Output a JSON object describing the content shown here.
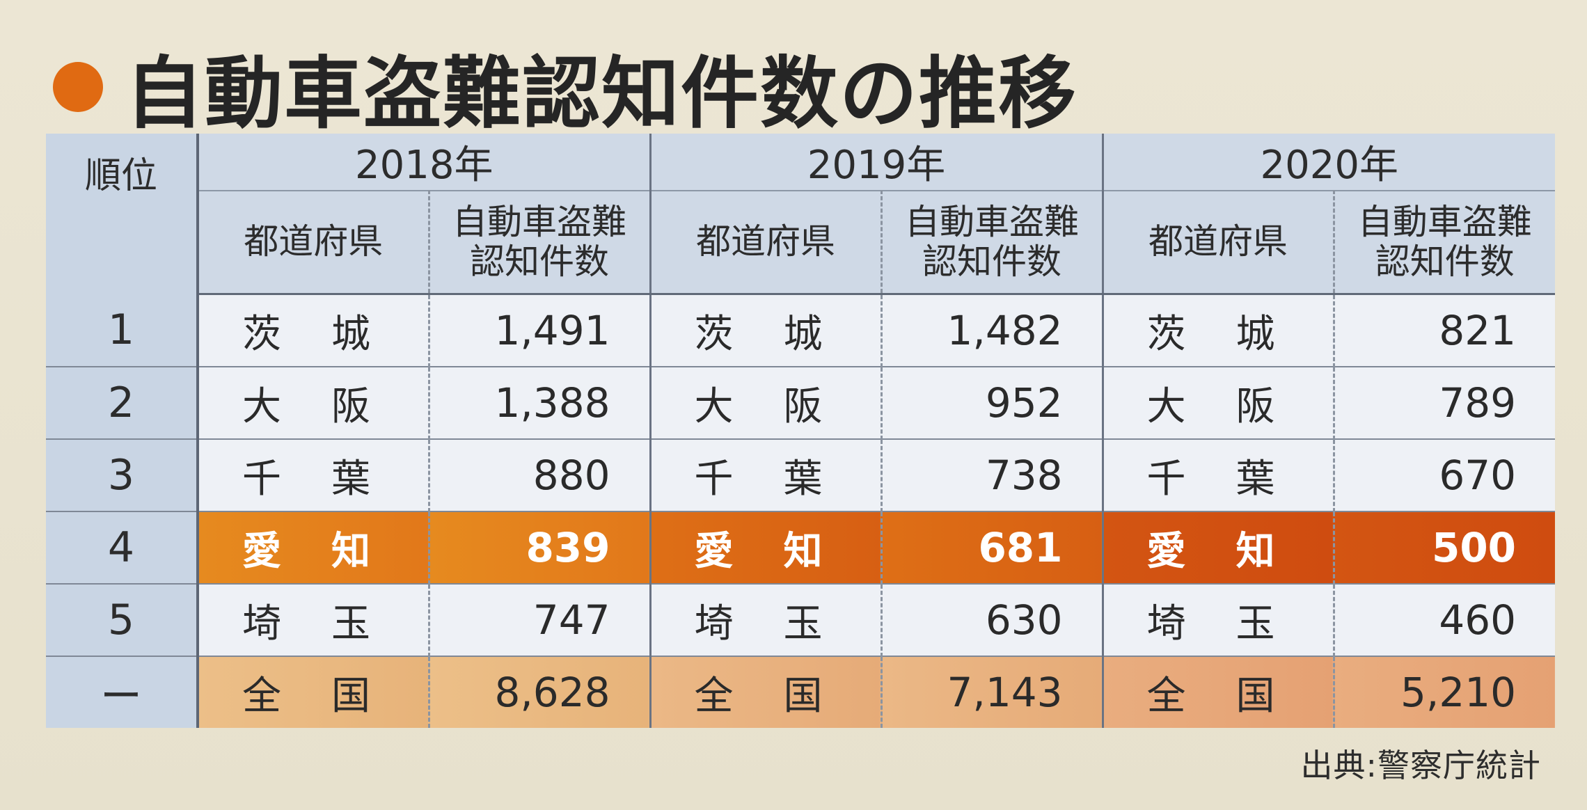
{
  "title": "自動車盗難認知件数の推移",
  "table": {
    "rank_header": "順位",
    "years": [
      "2018年",
      "2019年",
      "2020年"
    ],
    "sub_headers": {
      "prefecture": "都道府県",
      "count_line1": "自動車盗難",
      "count_line2": "認知件数"
    },
    "rows": [
      {
        "rank": "1",
        "cells": [
          {
            "pref": [
              "茨",
              "城"
            ],
            "count": "1,491"
          },
          {
            "pref": [
              "茨",
              "城"
            ],
            "count": "1,482"
          },
          {
            "pref": [
              "茨",
              "城"
            ],
            "count": "821"
          }
        ]
      },
      {
        "rank": "2",
        "cells": [
          {
            "pref": [
              "大",
              "阪"
            ],
            "count": "1,388"
          },
          {
            "pref": [
              "大",
              "阪"
            ],
            "count": "952"
          },
          {
            "pref": [
              "大",
              "阪"
            ],
            "count": "789"
          }
        ]
      },
      {
        "rank": "3",
        "cells": [
          {
            "pref": [
              "千",
              "葉"
            ],
            "count": "880"
          },
          {
            "pref": [
              "千",
              "葉"
            ],
            "count": "738"
          },
          {
            "pref": [
              "千",
              "葉"
            ],
            "count": "670"
          }
        ]
      },
      {
        "rank": "4",
        "highlight": true,
        "cells": [
          {
            "pref": [
              "愛",
              "知"
            ],
            "count": "839"
          },
          {
            "pref": [
              "愛",
              "知"
            ],
            "count": "681"
          },
          {
            "pref": [
              "愛",
              "知"
            ],
            "count": "500"
          }
        ]
      },
      {
        "rank": "5",
        "cells": [
          {
            "pref": [
              "埼",
              "玉"
            ],
            "count": "747"
          },
          {
            "pref": [
              "埼",
              "玉"
            ],
            "count": "630"
          },
          {
            "pref": [
              "埼",
              "玉"
            ],
            "count": "460"
          }
        ]
      },
      {
        "rank": "ー",
        "total": true,
        "cells": [
          {
            "pref": [
              "全",
              "国"
            ],
            "count": "8,628"
          },
          {
            "pref": [
              "全",
              "国"
            ],
            "count": "7,143"
          },
          {
            "pref": [
              "全",
              "国"
            ],
            "count": "5,210"
          }
        ]
      }
    ]
  },
  "source": "出典:警察庁統計",
  "colors": {
    "accent": "#e06a12",
    "header_bg": "#cfd9e6",
    "highlight_2018": "#e68a1f",
    "highlight_2020": "#cf4c10",
    "total_bg": "#e9b27d"
  }
}
